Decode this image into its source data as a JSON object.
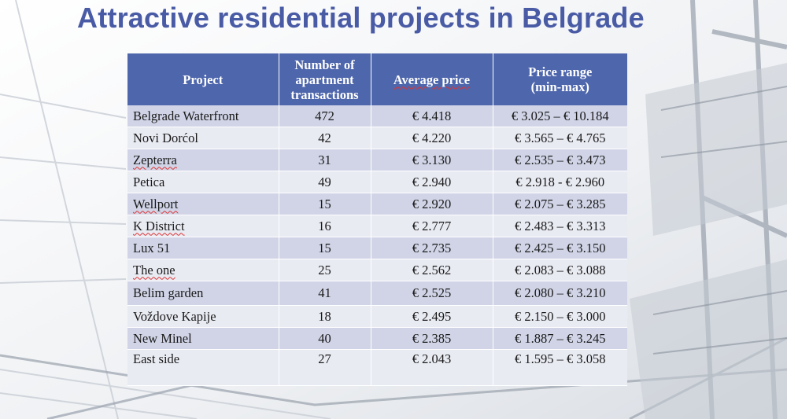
{
  "title": "Attractive residential projects in Belgrade",
  "colors": {
    "title": "#4a5ba6",
    "header_bg": "#4e66ac",
    "row_dark": "#d0d4e6",
    "row_light": "#e9ebf3"
  },
  "table": {
    "headers": {
      "project": "Project",
      "transactions": [
        "Number of",
        "apartment",
        "transactions"
      ],
      "average_price": "Average price",
      "price_range": [
        "Price range",
        "(min-max)"
      ]
    },
    "rows": [
      {
        "project": "Belgrade Waterfront",
        "transactions": "472",
        "average_price": "€ 4.418",
        "price_range": "€ 3.025 – € 10.184"
      },
      {
        "project": "Novi Dorćol",
        "transactions": "42",
        "average_price": "€ 4.220",
        "price_range": "€ 3.565 – € 4.765"
      },
      {
        "project": "Zepterra",
        "transactions": "31",
        "average_price": "€ 3.130",
        "price_range": "€ 2.535 – € 3.473"
      },
      {
        "project": "Petica",
        "transactions": "49",
        "average_price": "€ 2.940",
        "price_range": "€ 2.918 - € 2.960"
      },
      {
        "project": "Wellport",
        "transactions": "15",
        "average_price": "€ 2.920",
        "price_range": "€ 2.075 – € 3.285"
      },
      {
        "project": "K District",
        "transactions": "16",
        "average_price": "€ 2.777",
        "price_range": "€ 2.483 – € 3.313"
      },
      {
        "project": "Lux 51",
        "transactions": "15",
        "average_price": "€ 2.735",
        "price_range": "€ 2.425 – € 3.150"
      },
      {
        "project": "The one",
        "transactions": "25",
        "average_price": "€ 2.562",
        "price_range": "€ 2.083 – € 3.088"
      },
      {
        "project": "Belim garden",
        "transactions": "41",
        "average_price": "€ 2.525",
        "price_range": "€ 2.080 – € 3.210"
      },
      {
        "project": "Voždove Kapije",
        "transactions": "18",
        "average_price": "€ 2.495",
        "price_range": "€ 2.150 – € 3.000"
      },
      {
        "project": "New Minel",
        "transactions": "40",
        "average_price": "€ 2.385",
        "price_range": "€ 1.887 – € 3.245"
      },
      {
        "project": "East side",
        "transactions": "27",
        "average_price": "€ 2.043",
        "price_range": "€ 1.595 – € 3.058"
      }
    ]
  }
}
